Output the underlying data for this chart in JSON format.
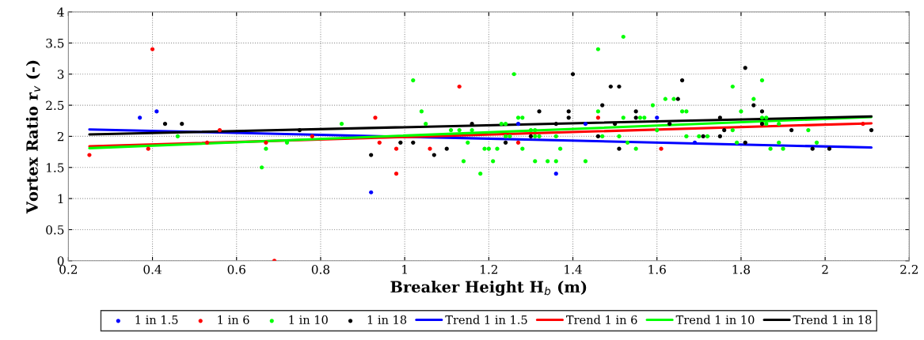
{
  "chart_data": {
    "type": "scatter",
    "xlabel": "Breaker Height H$_{b}$ (m)",
    "ylabel": "Vortex Ratio r$_{v}$ (-)",
    "xlim": [
      0.2,
      2.2
    ],
    "ylim": [
      0,
      4
    ],
    "xticks": [
      0.2,
      0.4,
      0.6,
      0.8,
      1,
      1.2,
      1.4,
      1.6,
      1.8,
      2,
      2.2
    ],
    "yticks": [
      0,
      0.5,
      1,
      1.5,
      2,
      2.5,
      3,
      3.5,
      4
    ],
    "grid": true,
    "legend": "bottom",
    "series": [
      {
        "name": "1 in 1.5",
        "marker": "circle",
        "color": "#0000ff",
        "x": [
          0.37,
          0.41,
          0.92,
          1.27,
          1.36,
          1.43,
          1.6,
          1.69
        ],
        "values": [
          2.3,
          2.4,
          1.1,
          2.2,
          1.4,
          2.2,
          2.3,
          1.9
        ]
      },
      {
        "name": "1 in 6",
        "marker": "circle",
        "color": "#ff0000",
        "x": [
          0.25,
          0.39,
          0.4,
          0.53,
          0.56,
          0.67,
          0.69,
          0.78,
          0.93,
          0.94,
          0.98,
          0.98,
          1.06,
          1.13,
          1.27,
          1.46,
          1.61,
          2.09
        ],
        "values": [
          1.7,
          1.8,
          3.4,
          1.9,
          2.1,
          1.9,
          0,
          2.0,
          2.3,
          1.9,
          1.8,
          1.4,
          1.8,
          2.8,
          1.9,
          2.3,
          1.8,
          2.2
        ]
      },
      {
        "name": "1 in 10",
        "marker": "circle",
        "color": "#00ff00",
        "x": [
          0.46,
          0.66,
          0.67,
          0.72,
          0.85,
          1.02,
          1.04,
          1.05,
          1.11,
          1.13,
          1.14,
          1.15,
          1.16,
          1.18,
          1.19,
          1.2,
          1.21,
          1.22,
          1.23,
          1.24,
          1.24,
          1.25,
          1.26,
          1.27,
          1.28,
          1.28,
          1.3,
          1.31,
          1.31,
          1.31,
          1.32,
          1.34,
          1.36,
          1.36,
          1.37,
          1.43,
          1.46,
          1.46,
          1.47,
          1.51,
          1.52,
          1.52,
          1.53,
          1.55,
          1.56,
          1.57,
          1.59,
          1.6,
          1.62,
          1.64,
          1.66,
          1.67,
          1.67,
          1.7,
          1.72,
          1.78,
          1.78,
          1.79,
          1.8,
          1.83,
          1.85,
          1.85,
          1.86,
          1.86,
          1.87,
          1.89,
          1.89,
          1.9,
          1.96,
          1.98
        ],
        "values": [
          2.0,
          1.5,
          1.8,
          1.9,
          2.2,
          2.9,
          2.4,
          2.2,
          2.1,
          2.1,
          1.6,
          1.9,
          2.1,
          1.4,
          1.8,
          1.8,
          1.6,
          1.8,
          2.2,
          2.2,
          2.0,
          2.0,
          3.0,
          2.3,
          2.3,
          1.8,
          2.1,
          2.1,
          1.6,
          2.0,
          2.0,
          1.6,
          1.6,
          2.0,
          1.8,
          1.6,
          3.4,
          2.4,
          2.0,
          2.0,
          3.6,
          2.3,
          1.9,
          1.8,
          2.3,
          2.3,
          2.5,
          2.1,
          2.6,
          2.6,
          2.4,
          2.4,
          2.0,
          2.0,
          2.0,
          2.8,
          2.1,
          1.9,
          2.4,
          2.6,
          2.9,
          2.3,
          2.3,
          2.2,
          1.8,
          2.2,
          1.9,
          1.8,
          2.1,
          1.9
        ]
      },
      {
        "name": "1 in 18",
        "marker": "circle",
        "color": "#000000",
        "x": [
          0.43,
          0.47,
          0.75,
          0.92,
          0.99,
          1.02,
          1.07,
          1.1,
          1.16,
          1.24,
          1.3,
          1.32,
          1.36,
          1.39,
          1.39,
          1.4,
          1.46,
          1.47,
          1.49,
          1.5,
          1.51,
          1.51,
          1.55,
          1.55,
          1.63,
          1.65,
          1.66,
          1.71,
          1.75,
          1.75,
          1.76,
          1.81,
          1.81,
          1.83,
          1.85,
          1.85,
          1.92,
          1.97,
          2.01,
          2.11
        ],
        "values": [
          2.2,
          2.2,
          2.1,
          1.7,
          1.9,
          1.9,
          1.7,
          1.8,
          2.2,
          1.9,
          2.0,
          2.4,
          2.2,
          2.4,
          2.3,
          3.0,
          2.0,
          2.5,
          2.8,
          2.2,
          2.8,
          1.8,
          2.4,
          2.3,
          2.2,
          2.6,
          2.9,
          2.0,
          2.3,
          2.0,
          2.1,
          3.1,
          1.9,
          2.5,
          2.4,
          2.2,
          2.1,
          1.8,
          1.8,
          2.1
        ]
      },
      {
        "name": "Trend 1 in 1.5",
        "type": "line",
        "color": "#0000ff",
        "x": [
          0.25,
          2.11
        ],
        "values": [
          2.11,
          1.82
        ]
      },
      {
        "name": "Trend 1 in 6",
        "type": "line",
        "color": "#ff0000",
        "x": [
          0.25,
          2.11
        ],
        "values": [
          1.84,
          2.21
        ]
      },
      {
        "name": "Trend 1 in 10",
        "type": "line",
        "color": "#00ff00",
        "x": [
          0.25,
          2.11
        ],
        "values": [
          1.81,
          2.31
        ]
      },
      {
        "name": "Trend 1 in 18",
        "type": "line",
        "color": "#000000",
        "x": [
          0.25,
          2.11
        ],
        "values": [
          2.03,
          2.32
        ]
      }
    ]
  }
}
